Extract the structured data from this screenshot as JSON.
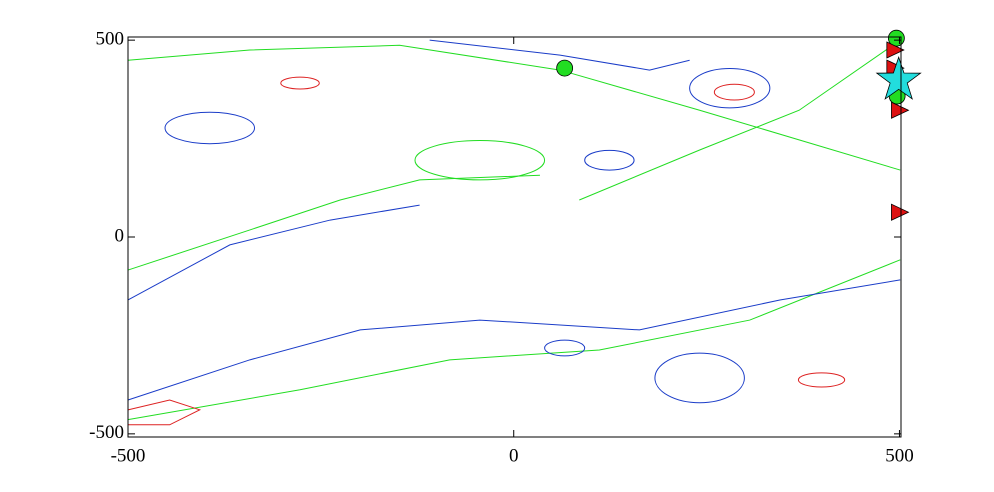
{
  "chart_data": {
    "type": "contour",
    "xlim": [
      -500,
      502
    ],
    "ylim": [
      -508,
      508
    ],
    "xticks": [
      -500,
      0,
      500
    ],
    "yticks": [
      -500,
      0,
      500
    ],
    "contours": [
      {
        "color": "#22dd22",
        "x": [
          -500,
          -342,
          -225,
          -122,
          34
        ],
        "y": [
          -84,
          18,
          94,
          145,
          157
        ]
      },
      {
        "color": "#1a3cc8",
        "x": [
          -500,
          -368,
          -238,
          -122
        ],
        "y": [
          -160,
          -20,
          43,
          81
        ]
      },
      {
        "color": "#22dd22",
        "x": [
          -500,
          -342,
          -148,
          60,
          241,
          501
        ],
        "y": [
          449,
          475,
          487,
          424,
          322,
          170
        ]
      },
      {
        "color": "#1a3cc8",
        "x": [
          -109,
          60,
          176,
          228
        ],
        "y": [
          500,
          462,
          424,
          449
        ]
      },
      {
        "color": "#22dd22",
        "x": [
          -500,
          -277,
          -83,
          111,
          306,
          501
        ],
        "y": [
          -464,
          -388,
          -312,
          -287,
          -211,
          -58
        ]
      },
      {
        "color": "#1a3cc8",
        "x": [
          -500,
          -342,
          -199,
          -44,
          163,
          345,
          501
        ],
        "y": [
          -414,
          -312,
          -236,
          -211,
          -236,
          -160,
          -109
        ]
      },
      {
        "color": "#22dd22",
        "x": [
          85,
          241,
          370,
          501
        ],
        "y": [
          94,
          221,
          322,
          500
        ]
      },
      {
        "color": "#dd2222",
        "x": [
          -500,
          -446,
          -407,
          -446,
          -500
        ],
        "y": [
          -439,
          -414,
          -439,
          -477,
          -477
        ]
      }
    ],
    "ellipses": [
      {
        "color": "#1a3cc8",
        "cx": 66,
        "cy": -282,
        "rx": 26,
        "ry": 20
      },
      {
        "color": "#1a3cc8",
        "cx": -394,
        "cy": 277,
        "rx": 58,
        "ry": 40
      },
      {
        "color": "#dd2222",
        "cx": -277,
        "cy": 391,
        "rx": 25,
        "ry": 15
      },
      {
        "color": "#dd2222",
        "cx": 399,
        "cy": -363,
        "rx": 30,
        "ry": 18
      },
      {
        "color": "#1a3cc8",
        "cx": 241,
        "cy": -358,
        "rx": 58,
        "ry": 63
      },
      {
        "color": "#1a3cc8",
        "cx": 124,
        "cy": 195,
        "rx": 32,
        "ry": 25
      },
      {
        "color": "#22dd22",
        "cx": -44,
        "cy": 195,
        "rx": 84,
        "ry": 50
      },
      {
        "color": "#dd2222",
        "cx": 286,
        "cy": 368,
        "rx": 26,
        "ry": 20
      },
      {
        "color": "#1a3cc8",
        "cx": 280,
        "cy": 378,
        "rx": 52,
        "ry": 50
      }
    ],
    "markers": [
      {
        "shape": "circle",
        "color": "#22dd22",
        "x": [
          66,
          496,
          497
        ],
        "y": [
          429,
          505,
          358
        ]
      },
      {
        "shape": "triangle",
        "color": "#dd1111",
        "x": [
          500,
          500,
          494,
          494
        ],
        "y": [
          63,
          322,
          475,
          429
        ]
      },
      {
        "shape": "star",
        "color": "#22dddd",
        "x": [
          499
        ],
        "y": [
          398
        ]
      }
    ]
  }
}
